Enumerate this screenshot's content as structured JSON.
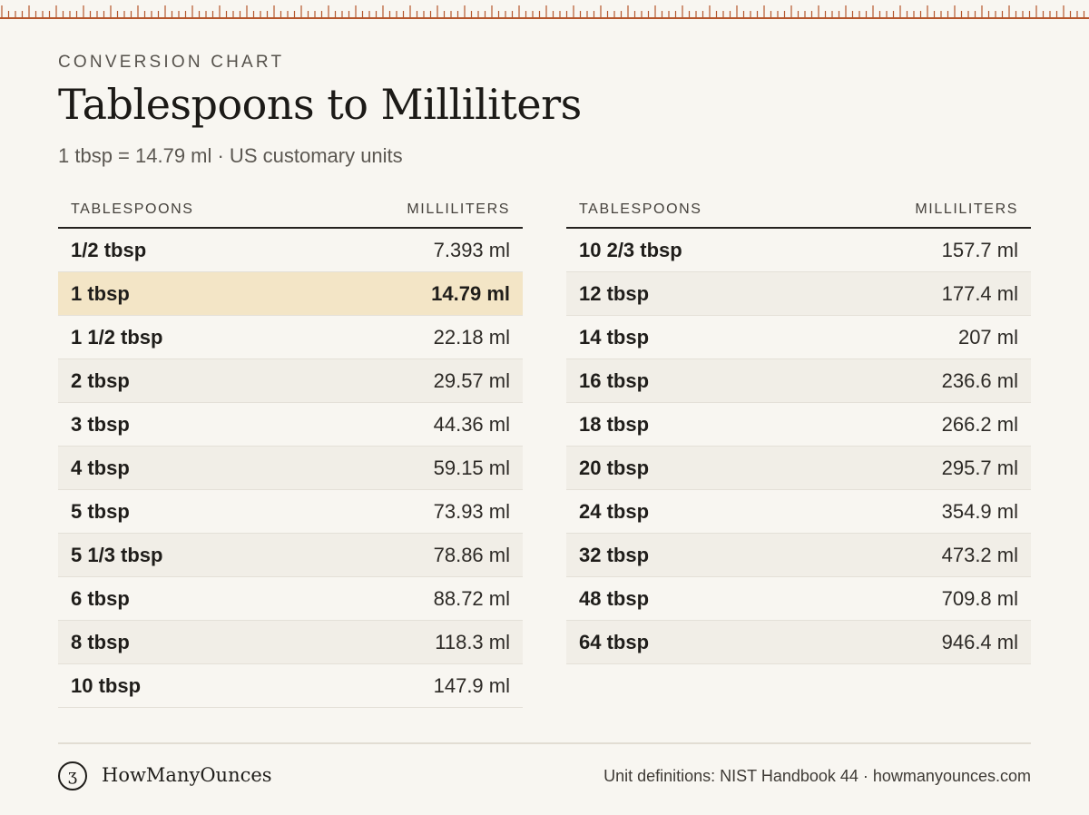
{
  "header": {
    "eyebrow": "CONVERSION CHART",
    "title": "Tablespoons to Milliliters",
    "subtitle": "1 tbsp = 14.79 ml · US customary units"
  },
  "tables": [
    {
      "col_tbsp": "TABLESPOONS",
      "col_ml": "MILLILITERS",
      "rows": [
        {
          "tbsp": "1/2 tbsp",
          "ml": "7.393 ml"
        },
        {
          "tbsp": "1 tbsp",
          "ml": "14.79 ml",
          "highlight": true
        },
        {
          "tbsp": "1 1/2 tbsp",
          "ml": "22.18 ml"
        },
        {
          "tbsp": "2 tbsp",
          "ml": "29.57 ml"
        },
        {
          "tbsp": "3 tbsp",
          "ml": "44.36 ml"
        },
        {
          "tbsp": "4 tbsp",
          "ml": "59.15 ml"
        },
        {
          "tbsp": "5 tbsp",
          "ml": "73.93 ml"
        },
        {
          "tbsp": "5 1/3 tbsp",
          "ml": "78.86 ml"
        },
        {
          "tbsp": "6 tbsp",
          "ml": "88.72 ml"
        },
        {
          "tbsp": "8 tbsp",
          "ml": "118.3 ml"
        },
        {
          "tbsp": "10 tbsp",
          "ml": "147.9 ml"
        }
      ]
    },
    {
      "col_tbsp": "TABLESPOONS",
      "col_ml": "MILLILITERS",
      "rows": [
        {
          "tbsp": "10 2/3 tbsp",
          "ml": "157.7 ml"
        },
        {
          "tbsp": "12 tbsp",
          "ml": "177.4 ml"
        },
        {
          "tbsp": "14 tbsp",
          "ml": "207 ml"
        },
        {
          "tbsp": "16 tbsp",
          "ml": "236.6 ml"
        },
        {
          "tbsp": "18 tbsp",
          "ml": "266.2 ml"
        },
        {
          "tbsp": "20 tbsp",
          "ml": "295.7 ml"
        },
        {
          "tbsp": "24 tbsp",
          "ml": "354.9 ml"
        },
        {
          "tbsp": "32 tbsp",
          "ml": "473.2 ml"
        },
        {
          "tbsp": "48 tbsp",
          "ml": "709.8 ml"
        },
        {
          "tbsp": "64 tbsp",
          "ml": "946.4 ml"
        }
      ]
    }
  ],
  "footer": {
    "logo_glyph": "ʒ",
    "brand": "HowManyOunces",
    "source": "Unit definitions: NIST Handbook 44 · howmanyounces.com"
  },
  "colors": {
    "background": "#f8f6f1",
    "ruler": "#b5562c",
    "highlight_row": "#f3e5c6",
    "alt_row": "#f1eee7"
  }
}
